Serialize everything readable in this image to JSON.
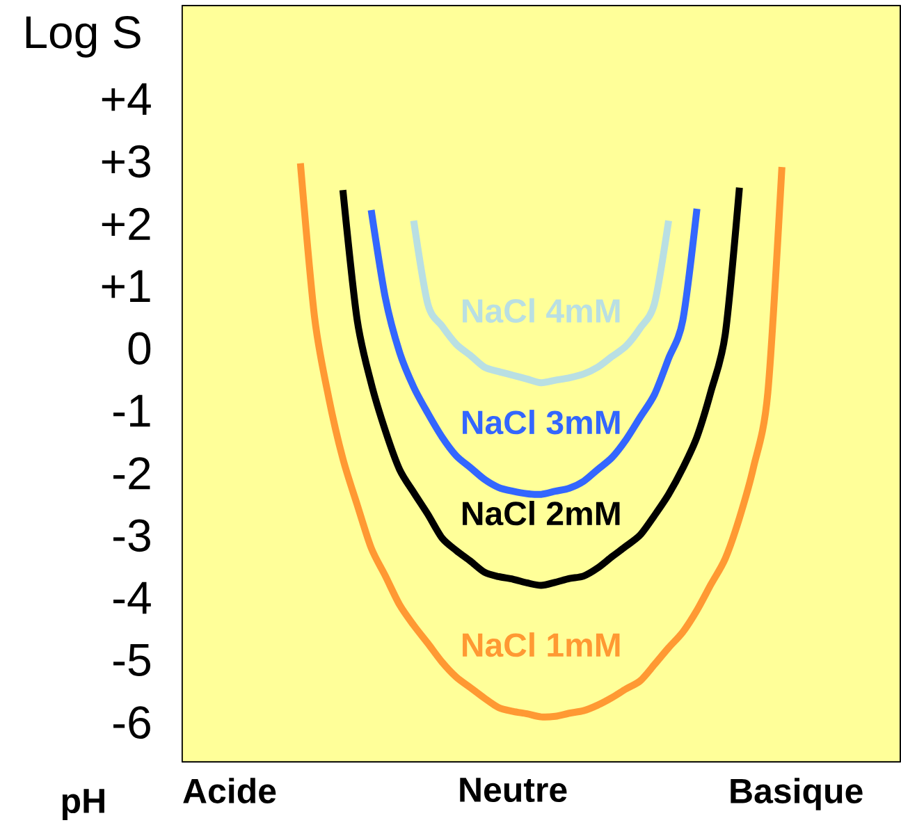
{
  "chart_data": {
    "type": "line",
    "xlabel": "pH",
    "ylabel": "Log S",
    "ylim": [
      -6.63,
      5.5
    ],
    "categories": [
      "Acide",
      null,
      null,
      null,
      null,
      null,
      null,
      null,
      null,
      null,
      null,
      null,
      null,
      null,
      null,
      null,
      null,
      null,
      null,
      null,
      "Neutre",
      null,
      null,
      null,
      null,
      null,
      null,
      null,
      null,
      null,
      null,
      null,
      null,
      null,
      null,
      null,
      null,
      null,
      null,
      null,
      "Basique"
    ],
    "yticks": [
      {
        "value": 4,
        "label": "+4"
      },
      {
        "value": 3,
        "label": "+3"
      },
      {
        "value": 2,
        "label": "+2"
      },
      {
        "value": 1,
        "label": "+1"
      },
      0,
      -1,
      -2,
      -3,
      -4,
      -5,
      -6
    ],
    "grid": false,
    "legend": false,
    "line_style": "solid",
    "marker": "none",
    "series": [
      {
        "name": "NaCl 1mM",
        "color": "#ff9933",
        "values": [
          null,
          null,
          null,
          null,
          null,
          2.97,
          0.5,
          -0.79,
          -1.77,
          -2.5,
          -3.2,
          -3.65,
          -4.11,
          -4.44,
          -4.73,
          -5.03,
          -5.27,
          -5.44,
          -5.61,
          -5.76,
          -5.82,
          -5.86,
          -5.91,
          -5.9,
          -5.85,
          -5.81,
          -5.72,
          -5.6,
          -5.46,
          -5.33,
          -5.07,
          -4.8,
          -4.55,
          -4.2,
          -3.78,
          -3.37,
          -2.72,
          -1.9,
          -0.72,
          2.91,
          null
        ]
      },
      {
        "name": "NaCl 2mM",
        "color": "#000000",
        "values": [
          null,
          null,
          null,
          null,
          null,
          null,
          null,
          null,
          2.54,
          0.47,
          -0.56,
          -1.32,
          -1.94,
          -2.31,
          -2.66,
          -3.04,
          -3.24,
          -3.41,
          -3.59,
          -3.66,
          -3.7,
          -3.76,
          -3.8,
          -3.75,
          -3.69,
          -3.65,
          -3.52,
          -3.34,
          -3.17,
          -2.99,
          -2.68,
          -2.34,
          -1.92,
          -1.42,
          -0.68,
          0.23,
          2.58,
          null,
          null,
          null,
          null
        ]
      },
      {
        "name": "NaCl 3mM",
        "color": "#3366ff",
        "values": [
          null,
          null,
          null,
          null,
          null,
          null,
          null,
          null,
          null,
          null,
          2.22,
          0.81,
          -0.06,
          -0.62,
          -1.04,
          -1.42,
          -1.72,
          -1.91,
          -2.1,
          -2.23,
          -2.29,
          -2.33,
          -2.34,
          -2.29,
          -2.24,
          -2.13,
          -1.94,
          -1.75,
          -1.46,
          -1.1,
          -0.74,
          -0.16,
          0.45,
          2.24,
          null,
          null,
          null,
          null,
          null,
          null,
          null
        ]
      },
      {
        "name": "NaCl 4mM",
        "color": "#b9dfe3",
        "values": [
          null,
          null,
          null,
          null,
          null,
          null,
          null,
          null,
          null,
          null,
          null,
          null,
          null,
          2.05,
          0.71,
          0.36,
          0.07,
          -0.11,
          -0.3,
          -0.37,
          -0.43,
          -0.49,
          -0.55,
          -0.51,
          -0.47,
          -0.41,
          -0.3,
          -0.13,
          0.04,
          0.33,
          0.72,
          2.05,
          null,
          null,
          null,
          null,
          null,
          null,
          null,
          null,
          null
        ]
      }
    ]
  }
}
